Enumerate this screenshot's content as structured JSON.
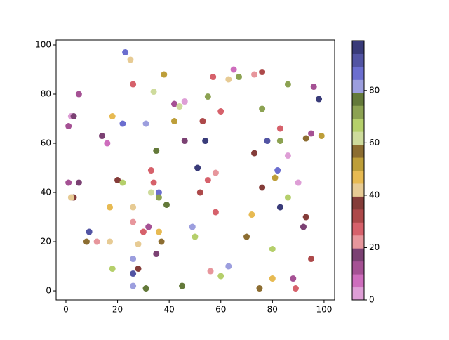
{
  "chart_data": {
    "type": "scatter",
    "x": [
      23,
      25,
      26,
      38,
      34,
      57,
      65,
      67,
      63,
      73,
      76,
      86,
      96,
      98,
      5,
      2,
      3,
      1,
      14,
      16,
      18,
      22,
      31,
      42,
      44,
      46,
      55,
      60,
      42,
      53,
      76,
      83,
      95,
      93,
      99,
      78,
      83,
      86,
      73,
      46,
      54,
      35,
      33,
      51,
      58,
      82,
      81,
      90,
      1,
      5,
      20,
      22,
      34,
      55,
      33,
      36,
      36,
      52,
      76,
      3,
      2,
      39,
      17,
      26,
      58,
      72,
      86,
      83,
      93,
      26,
      32,
      30,
      36,
      49,
      92,
      9,
      8,
      12,
      17,
      37,
      50,
      70,
      28,
      35,
      26,
      80,
      95,
      18,
      28,
      26,
      63,
      56,
      60,
      88,
      80,
      26,
      31,
      45,
      75,
      89
    ],
    "values": [
      97,
      94,
      84,
      88,
      81,
      87,
      90,
      87,
      86,
      88,
      89,
      84,
      83,
      78,
      80,
      71,
      71,
      67,
      63,
      60,
      71,
      68,
      68,
      76,
      75,
      77,
      79,
      73,
      69,
      69,
      74,
      66,
      64,
      62,
      63,
      61,
      61,
      55,
      56,
      61,
      61,
      57,
      49,
      50,
      48,
      49,
      46,
      44,
      44,
      44,
      45,
      44,
      44,
      45,
      40,
      40,
      38,
      40,
      42,
      38,
      38,
      35,
      34,
      34,
      32,
      31,
      38,
      34,
      30,
      28,
      26,
      24,
      24,
      26,
      26,
      24,
      20,
      20,
      20,
      20,
      22,
      22,
      19,
      15,
      13,
      17,
      13,
      9,
      9,
      7,
      10,
      8,
      6,
      5,
      5,
      2,
      1,
      2,
      1,
      1
    ],
    "color_values": [
      87,
      42,
      27,
      52,
      62,
      27,
      7,
      72,
      42,
      22,
      32,
      72,
      12,
      97,
      12,
      2,
      17,
      12,
      17,
      7,
      47,
      87,
      82,
      12,
      62,
      2,
      72,
      27,
      52,
      32,
      72,
      27,
      12,
      57,
      52,
      92,
      72,
      2,
      37,
      17,
      97,
      77,
      27,
      97,
      22,
      87,
      52,
      2,
      12,
      17,
      37,
      67,
      27,
      27,
      62,
      87,
      72,
      32,
      37,
      37,
      42,
      77,
      47,
      42,
      27,
      47,
      67,
      97,
      37,
      22,
      12,
      27,
      47,
      82,
      17,
      92,
      57,
      22,
      42,
      57,
      67,
      57,
      42,
      17,
      82,
      67,
      32,
      67,
      37,
      92,
      82,
      22,
      67,
      12,
      47,
      82,
      77,
      77,
      57,
      27
    ],
    "colormap": [
      "#de9ed6",
      "#ce6dbd",
      "#a55194",
      "#7b4173",
      "#e7969c",
      "#d6616b",
      "#ad494a",
      "#843c39",
      "#e7cb94",
      "#e7ba52",
      "#bd9e39",
      "#8c6d31",
      "#cedb9c",
      "#b5cf6b",
      "#8ca252",
      "#637939",
      "#9c9ede",
      "#6b6ecf",
      "#5254a3",
      "#393b79"
    ],
    "clim": [
      0,
      99
    ],
    "cticks": [
      0,
      20,
      40,
      60,
      80
    ],
    "xlim": [
      -3.8,
      104.1
    ],
    "xticks": [
      0,
      20,
      40,
      60,
      80,
      100
    ],
    "ylim": [
      -3.7,
      102
    ],
    "yticks": [
      0,
      20,
      40,
      60,
      80,
      100
    ]
  }
}
